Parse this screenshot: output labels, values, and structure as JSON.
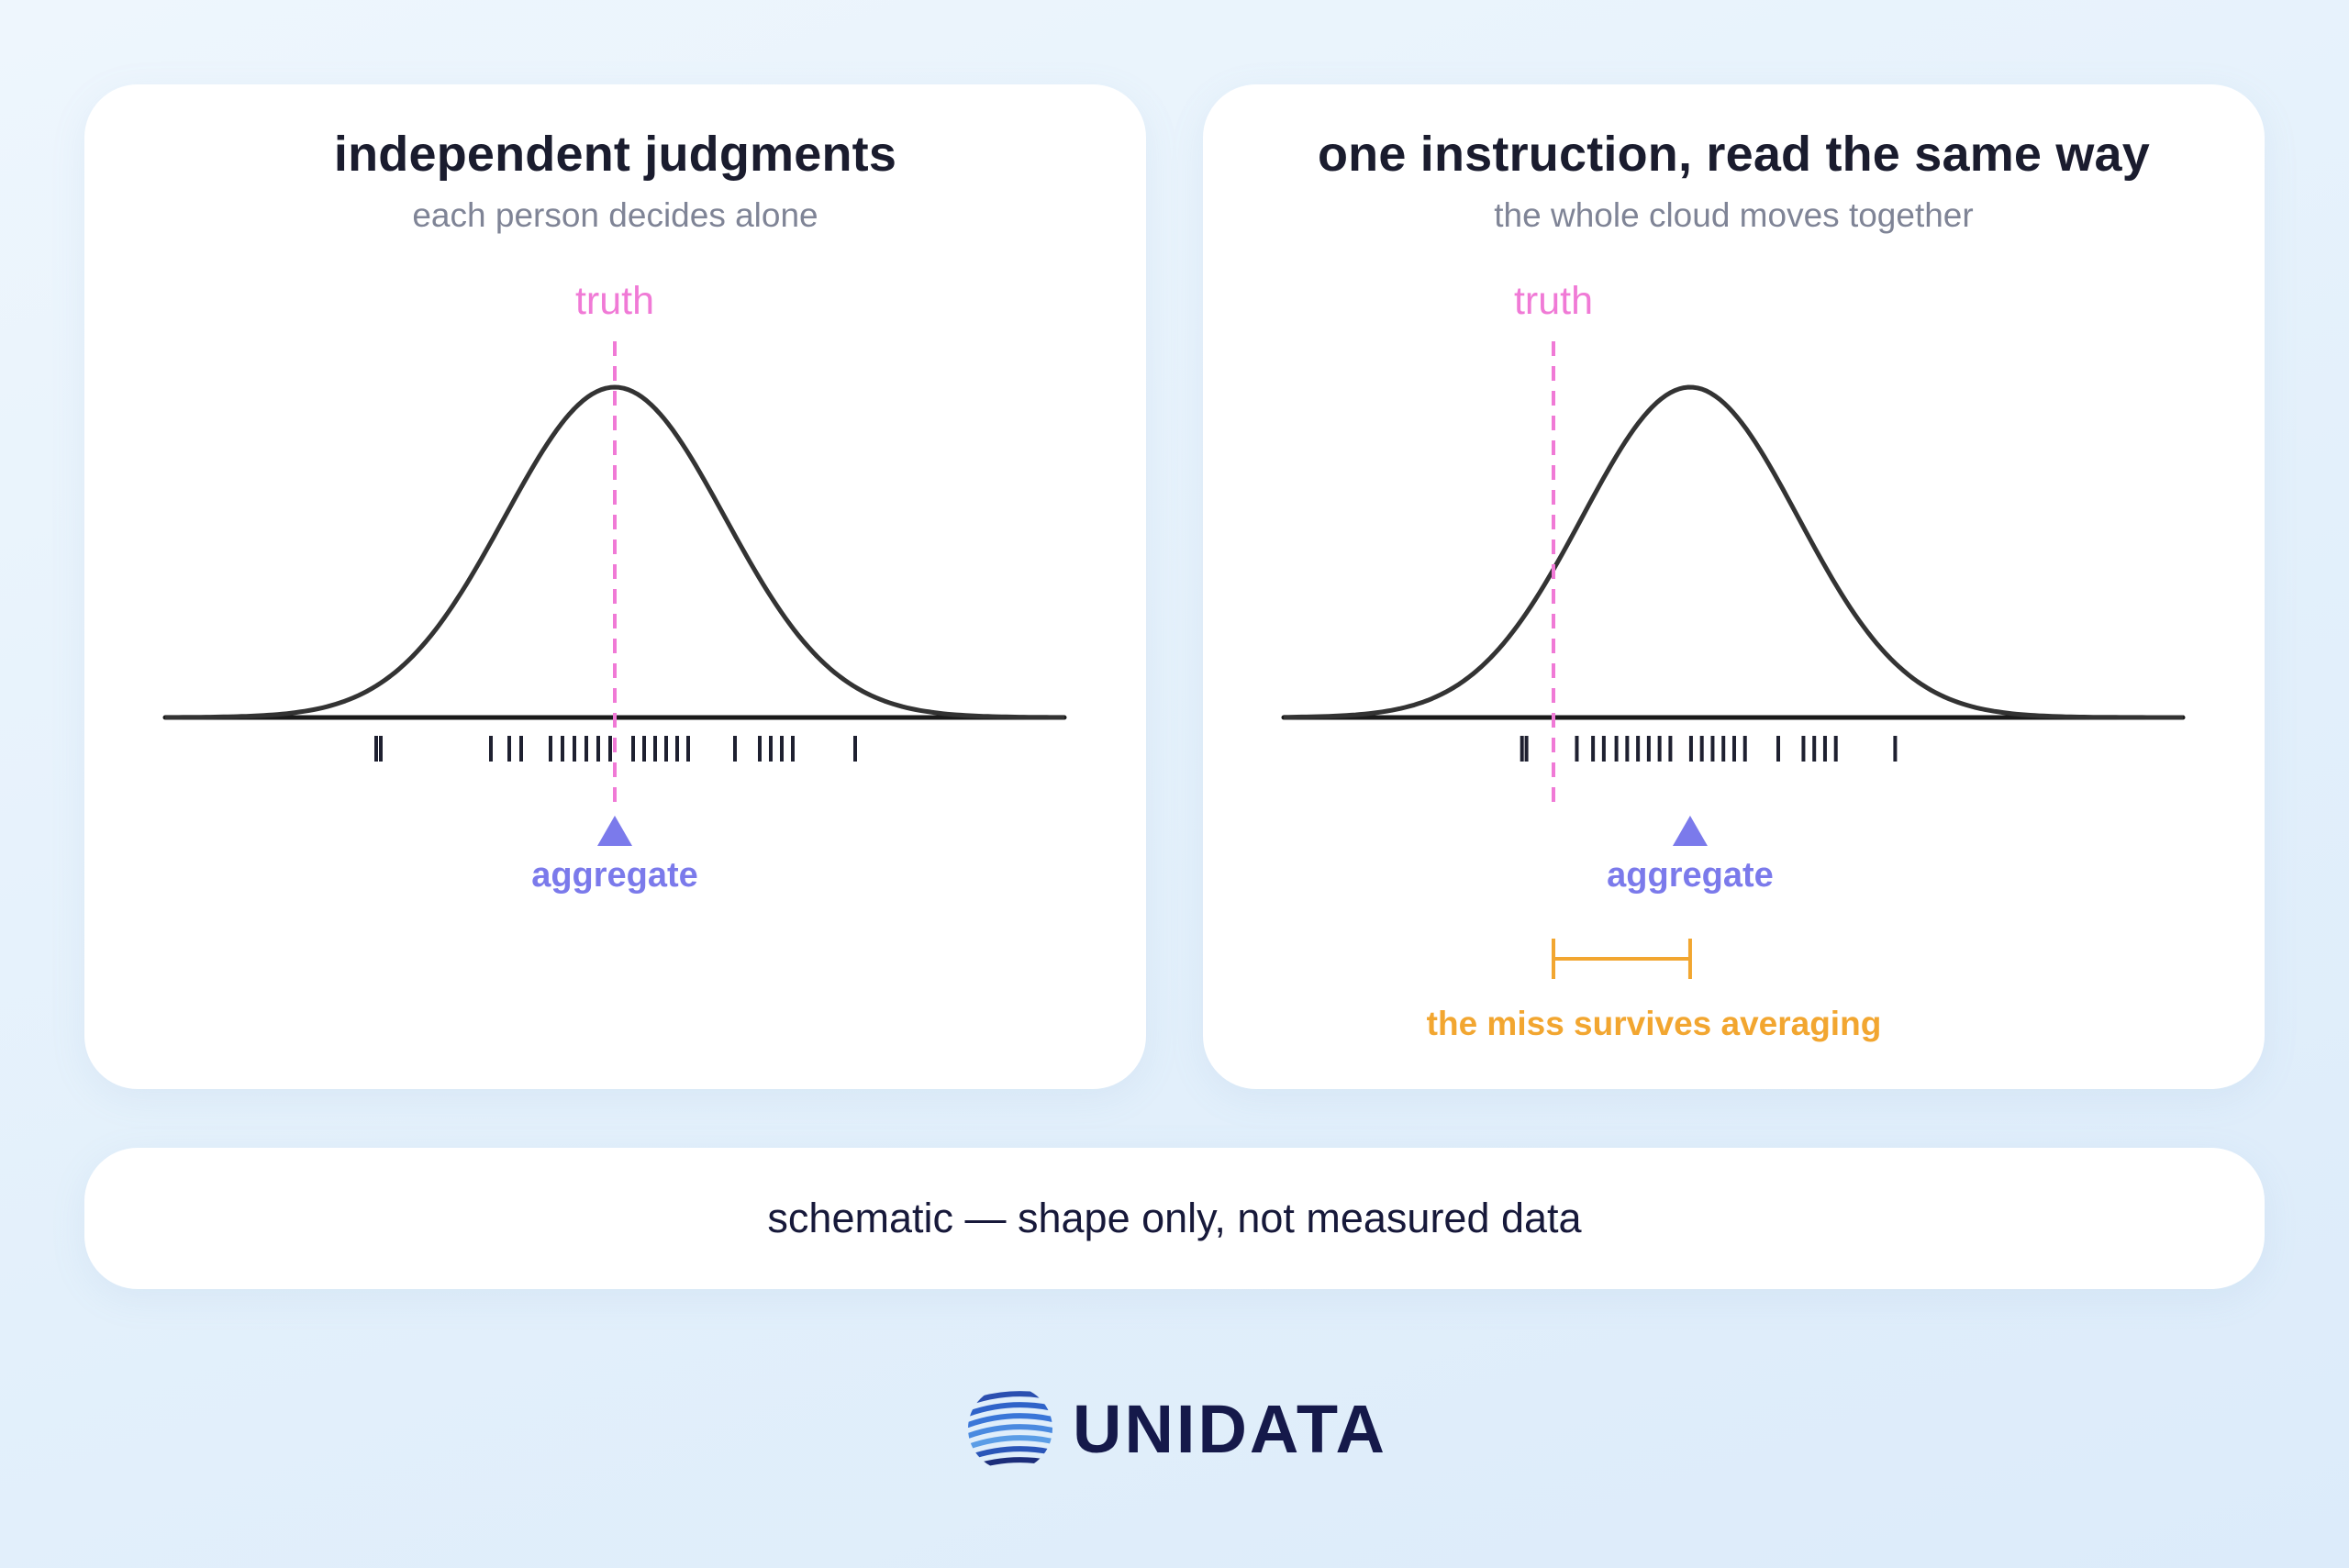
{
  "panels": [
    {
      "title": "independent judgments",
      "subtitle": "each person decides alone",
      "truth_label": "truth",
      "aggregate_label": "aggregate",
      "curve_center": 0.0,
      "truth_x": 0.0,
      "aggregate_x": 0.0,
      "judgments": [
        -0.26,
        -0.255,
        -0.135,
        -0.115,
        -0.102,
        -0.07,
        -0.057,
        -0.044,
        -0.031,
        -0.018,
        -0.005,
        0.02,
        0.032,
        0.044,
        0.056,
        0.068,
        0.08,
        0.131,
        0.158,
        0.17,
        0.182,
        0.194,
        0.262
      ]
    },
    {
      "title": "one instruction, read the same way",
      "subtitle": "the whole cloud moves together",
      "truth_label": "truth",
      "aggregate_label": "aggregate",
      "miss_label": "the miss survives averaging",
      "curve_center": 0.152,
      "truth_x": 0.0,
      "aggregate_x": 0.152,
      "judgments": [
        -0.035,
        -0.03,
        0.026,
        0.044,
        0.056,
        0.07,
        0.082,
        0.094,
        0.106,
        0.118,
        0.13,
        0.153,
        0.165,
        0.177,
        0.189,
        0.201,
        0.213,
        0.25,
        0.278,
        0.29,
        0.302,
        0.314,
        0.38
      ]
    }
  ],
  "note": "schematic — shape only, not measured data",
  "logo": {
    "text": "UNIDATA",
    "icon": "globe-icon"
  },
  "colors": {
    "truth": "#f07ad6",
    "aggregate": "#7b7aeb",
    "miss": "#f2a630",
    "curve": "#333333",
    "ticks": "#1e2030",
    "axis": "#1a1a1a"
  },
  "chart_data": [
    {
      "type": "line",
      "title": "independent judgments",
      "subtitle": "each person decides alone",
      "xlabel": "",
      "ylabel": "",
      "xlim": [
        -0.49,
        0.49
      ],
      "series": [
        {
          "curve": "normal",
          "center": 0.0
        }
      ],
      "annotations": [
        "truth",
        "aggregate"
      ]
    },
    {
      "type": "line",
      "title": "one instruction, read the same way",
      "subtitle": "the whole cloud moves together",
      "xlabel": "",
      "ylabel": "",
      "xlim": [
        -0.3,
        0.7
      ],
      "series": [
        {
          "curve": "normal",
          "center": 0.152
        }
      ],
      "annotations": [
        "truth",
        "aggregate",
        "the miss survives averaging"
      ]
    }
  ]
}
